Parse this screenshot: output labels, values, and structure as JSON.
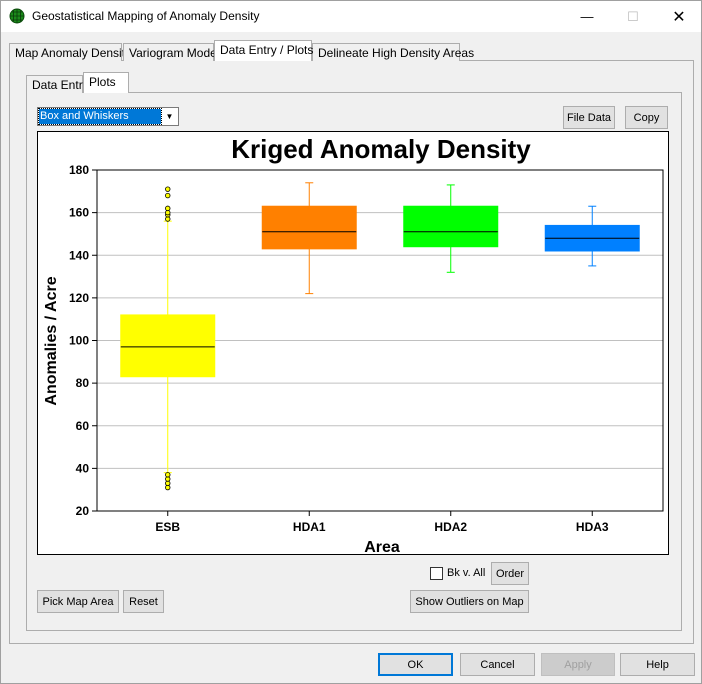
{
  "window": {
    "title": "Geostatistical Mapping of Anomaly Density",
    "minimize_glyph": "—",
    "maximize_glyph": "☐",
    "close_glyph": "✕"
  },
  "tabs": [
    {
      "label": "Map Anomaly Density",
      "active": false
    },
    {
      "label": "Variogram Model",
      "active": false
    },
    {
      "label": "Data Entry / Plots",
      "active": true
    },
    {
      "label": "Delineate High Density Areas",
      "active": false
    }
  ],
  "subtabs": [
    {
      "label": "Data Entry",
      "active": false
    },
    {
      "label": "Plots",
      "active": true
    }
  ],
  "plot_type": {
    "selected": "Box and Whiskers",
    "arrow_glyph": "▼"
  },
  "buttons": {
    "file_data": "File Data",
    "copy": "Copy",
    "bk_v_all": "Bk v. All",
    "order": "Order",
    "pick_map_area": "Pick Map Area",
    "reset": "Reset",
    "show_outliers": "Show Outliers on Map"
  },
  "dialog_buttons": {
    "ok": "OK",
    "cancel": "Cancel",
    "apply": "Apply",
    "help": "Help"
  },
  "colors": {
    "ESB": "#ffff00",
    "HDA1": "#ff8000",
    "HDA2": "#00ff00",
    "HDA3": "#0080ff",
    "grid": "#c0c0c0",
    "median": "#000000"
  },
  "chart_data": {
    "type": "box",
    "title": "Kriged Anomaly Density",
    "xlabel": "Area",
    "ylabel": "Anomalies / Acre",
    "ylim": [
      20,
      180
    ],
    "yticks": [
      20,
      40,
      60,
      80,
      100,
      120,
      140,
      160,
      180
    ],
    "grid": true,
    "categories": [
      "ESB",
      "HDA1",
      "HDA2",
      "HDA3"
    ],
    "boxes": [
      {
        "name": "ESB",
        "min": 38,
        "q1": 83,
        "median": 97,
        "q3": 112,
        "max": 156,
        "outliers": [
          157,
          159,
          160,
          162,
          168,
          171,
          31,
          33,
          35,
          37
        ]
      },
      {
        "name": "HDA1",
        "min": 122,
        "q1": 143,
        "median": 151,
        "q3": 163,
        "max": 174,
        "outliers": []
      },
      {
        "name": "HDA2",
        "min": 132,
        "q1": 144,
        "median": 151,
        "q3": 163,
        "max": 173,
        "outliers": []
      },
      {
        "name": "HDA3",
        "min": 135,
        "q1": 142,
        "median": 148,
        "q3": 154,
        "max": 163,
        "outliers": []
      }
    ]
  }
}
